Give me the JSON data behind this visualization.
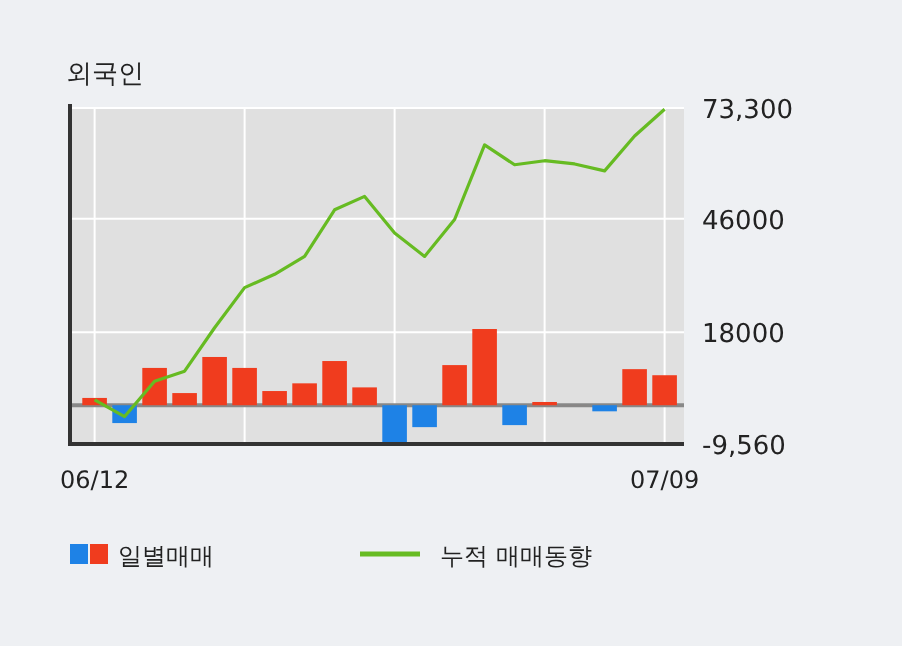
{
  "chart_data": {
    "type": "bar",
    "title": "외국인",
    "categories": [
      "06/12",
      null,
      null,
      null,
      null,
      null,
      null,
      null,
      null,
      null,
      null,
      null,
      null,
      null,
      null,
      null,
      null,
      null,
      null,
      "07/09"
    ],
    "series": [
      {
        "name": "일별매매",
        "colors": [
          "#f03c1e",
          "#1e82e6",
          "#f03c1e",
          "#f03c1e",
          "#f03c1e",
          "#f03c1e",
          "#f03c1e",
          "#f03c1e",
          "#f03c1e",
          "#f03c1e",
          "#1e82e6",
          "#1e82e6",
          "#f03c1e",
          "#f03c1e",
          "#1e82e6",
          "#f03c1e",
          "#f03c1e",
          "#1e82e6",
          "#f03c1e",
          "#f03c1e"
        ],
        "values": [
          1800,
          -4400,
          9200,
          3000,
          11900,
          9200,
          3500,
          5400,
          10900,
          4400,
          -9400,
          -5400,
          9900,
          18800,
          -4900,
          800,
          0,
          -1500,
          8900,
          7400
        ]
      },
      {
        "name": "누적 매매동향",
        "type": "line",
        "color": "#66bb22",
        "values": [
          1300,
          -2800,
          5900,
          8400,
          19100,
          29000,
          32300,
          36700,
          48200,
          51500,
          42500,
          36700,
          45800,
          64200,
          59300,
          60300,
          59500,
          57800,
          66400,
          73000
        ]
      }
    ],
    "ylim": [
      -9560,
      73300
    ],
    "yticks": [
      {
        "value": 73300,
        "label": "73,300"
      },
      46000,
      18000,
      {
        "value": -9560,
        "label": "-9,560"
      }
    ],
    "grid": true,
    "legend": "bottom"
  }
}
